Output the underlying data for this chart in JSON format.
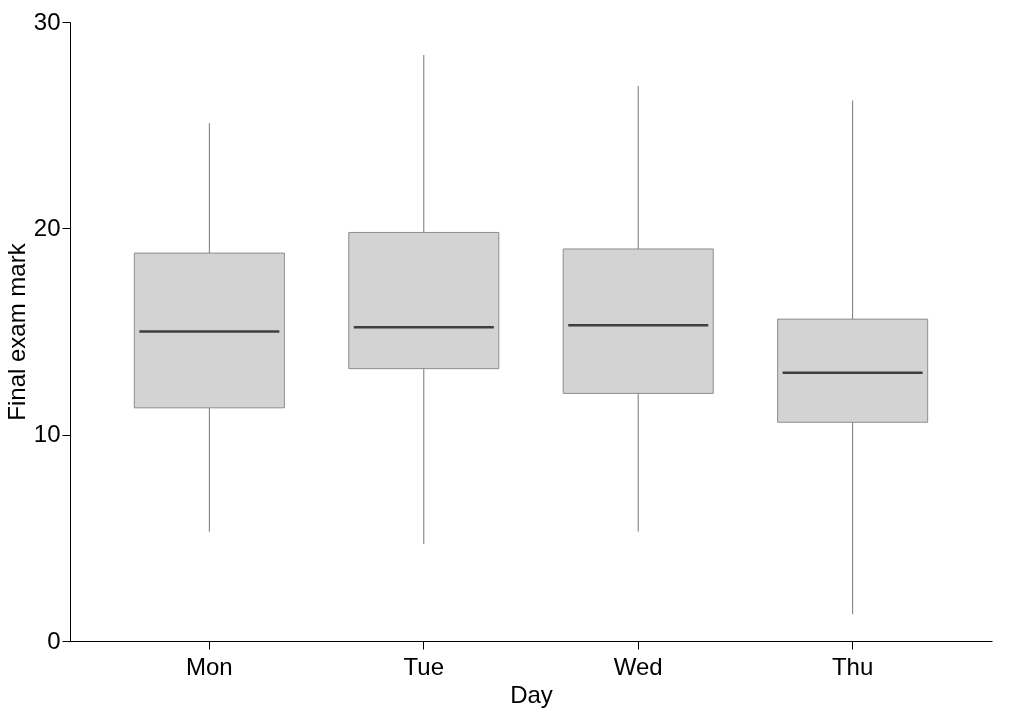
{
  "chart_data": {
    "type": "box",
    "xlabel": "Day",
    "ylabel": "Final exam mark",
    "categories": [
      "Mon",
      "Tue",
      "Wed",
      "Thu"
    ],
    "boxes": [
      {
        "low": 5.3,
        "q1": 11.3,
        "median": 15.0,
        "q3": 18.8,
        "high": 25.1
      },
      {
        "low": 4.7,
        "q1": 13.2,
        "median": 15.2,
        "q3": 19.8,
        "high": 28.4
      },
      {
        "low": 5.3,
        "q1": 12.0,
        "median": 15.3,
        "q3": 19.0,
        "high": 26.9
      },
      {
        "low": 1.3,
        "q1": 10.6,
        "median": 13.0,
        "q3": 15.6,
        "high": 26.2
      }
    ],
    "color": "#d3d3d3",
    "ylim": [
      0,
      30
    ],
    "yticks": [
      0,
      10,
      20,
      30
    ],
    "grid": false
  }
}
